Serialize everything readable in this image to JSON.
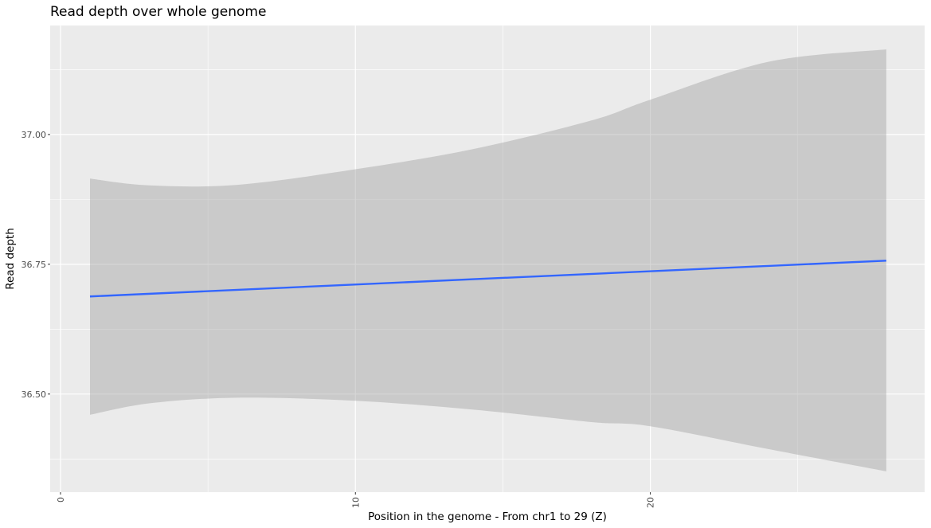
{
  "chart_data": {
    "type": "line",
    "title": "Read depth over whole genome",
    "xlabel": "Position in the genome - From chr1 to 29 (Z)",
    "ylabel": "Read depth",
    "xlim": [
      -0.35,
      29.3
    ],
    "ylim": [
      36.311,
      37.21
    ],
    "x_ticks": [
      0,
      10,
      20
    ],
    "x_tick_labels": [
      "0",
      "10",
      "20"
    ],
    "y_ticks": [
      36.5,
      36.75,
      37.0
    ],
    "y_tick_labels": [
      "36.50",
      "36.75",
      "37.00"
    ],
    "grid": true,
    "series": [
      {
        "kind": "smooth-fit",
        "color": "#3366ff",
        "x": [
          1,
          28
        ],
        "y": [
          36.688,
          36.757
        ]
      }
    ],
    "confidence_band": {
      "color": "#999999",
      "x": [
        1,
        3,
        6,
        10,
        14,
        18,
        20,
        24,
        28
      ],
      "upper": [
        36.915,
        36.902,
        36.903,
        36.933,
        36.972,
        37.027,
        37.067,
        37.14,
        37.164
      ],
      "lower": [
        36.46,
        36.482,
        36.493,
        36.487,
        36.47,
        36.446,
        36.438,
        36.394,
        36.351
      ]
    }
  }
}
